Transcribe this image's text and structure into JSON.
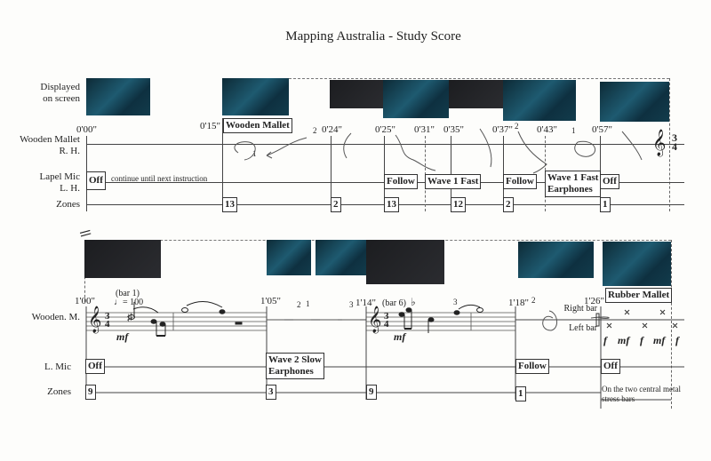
{
  "title": "Mapping Australia - Study Score",
  "system1": {
    "row_labels": {
      "displayed": [
        "Displayed",
        "on screen"
      ],
      "mallet": [
        "Wooden Mallet",
        "R. H."
      ],
      "mic": [
        "Lapel Mic",
        "L. H."
      ],
      "zones": "Zones"
    },
    "times": [
      "0'00\"",
      "0'15\"",
      "0'24\"",
      "0'25\"",
      "0'31\"",
      "0'35\"",
      "0'37\"",
      "0'43\"",
      "0'57\""
    ],
    "mallet_box": "Wooden Mallet",
    "mic": {
      "off": "Off",
      "continue": "continue until next instruction",
      "follow1": "Follow",
      "wave1": "Wave 1 Fast",
      "follow2": "Follow",
      "wave1e": [
        "Wave 1 Fast",
        "Earphones"
      ],
      "off2": "Off"
    },
    "zones": [
      "13",
      "2",
      "13",
      "12",
      "2",
      "1"
    ],
    "time_signature": [
      "3",
      "4"
    ],
    "handwritten": [
      "2",
      "1",
      "2",
      "1"
    ]
  },
  "system2": {
    "row_labels": {
      "mallet": "Wooden. M.",
      "mic": "L. Mic",
      "zones": "Zones"
    },
    "times": [
      "1'00\"",
      "1'05\"",
      "1'14\"",
      "1'18\"",
      "1'26\""
    ],
    "bar1": "(bar 1)",
    "tempo": "= 100",
    "bar6": "(bar 6)",
    "triplet": "3",
    "dyn1": "mf",
    "dyn2": "mf",
    "time_signature": [
      "3",
      "4"
    ],
    "rubber_box": "Rubber Mallet",
    "right_bar": "Right bar",
    "left_bar": "Left bar",
    "dynamics": [
      "f",
      "mf",
      "f",
      "mf",
      "f"
    ],
    "mic": {
      "off": "Off",
      "wave2": [
        "Wave 2 Slow",
        "Earphones"
      ],
      "follow": "Follow",
      "off2": "Off"
    },
    "zones": [
      "9",
      "3",
      "9",
      "1"
    ],
    "note": [
      "On the two central metal",
      "stress bars"
    ],
    "handwritten": [
      "1",
      "2",
      "3",
      "2"
    ]
  }
}
